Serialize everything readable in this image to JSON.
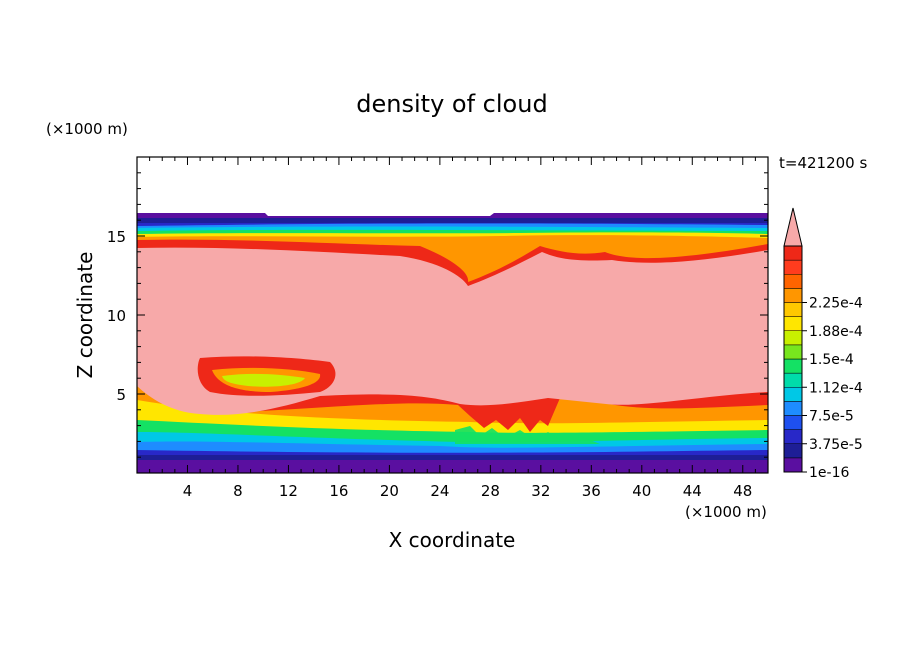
{
  "chart_data": {
    "type": "heatmap",
    "title": "density of cloud",
    "time_label": "t=421200 s",
    "xlabel": "X coordinate",
    "ylabel": "Z coordinate",
    "x_unit": "(×1000 m)",
    "z_unit": "(×1000 m)",
    "xlim": [
      0,
      50
    ],
    "ylim": [
      0,
      20
    ],
    "x_ticks": [
      "4",
      "8",
      "12",
      "16",
      "20",
      "24",
      "28",
      "32",
      "36",
      "40",
      "44",
      "48"
    ],
    "y_ticks": [
      "5",
      "10",
      "15"
    ],
    "colorbar": {
      "labels": [
        "1e-16",
        "3.75e-5",
        "7.5e-5",
        "1.12e-4",
        "1.5e-4",
        "1.88e-4",
        "2.25e-4"
      ],
      "level_colors": [
        "#5a0fa0",
        "#1e1e96",
        "#2828c8",
        "#1e50f0",
        "#1e8cff",
        "#00c8e6",
        "#00dcaa",
        "#14e164",
        "#78e61e",
        "#c8f000",
        "#ffe600",
        "#ffc800",
        "#ff9600",
        "#ff6400",
        "#ff3c1e",
        "#ee2818"
      ],
      "overflow_color": "#f7a9a9"
    },
    "field_description_values": {
      "cloud_layer_bottom_z": 0.4,
      "cloud_layer_top_z": 16.2,
      "saturated_core_range_z": [
        4.0,
        14.3
      ]
    }
  }
}
